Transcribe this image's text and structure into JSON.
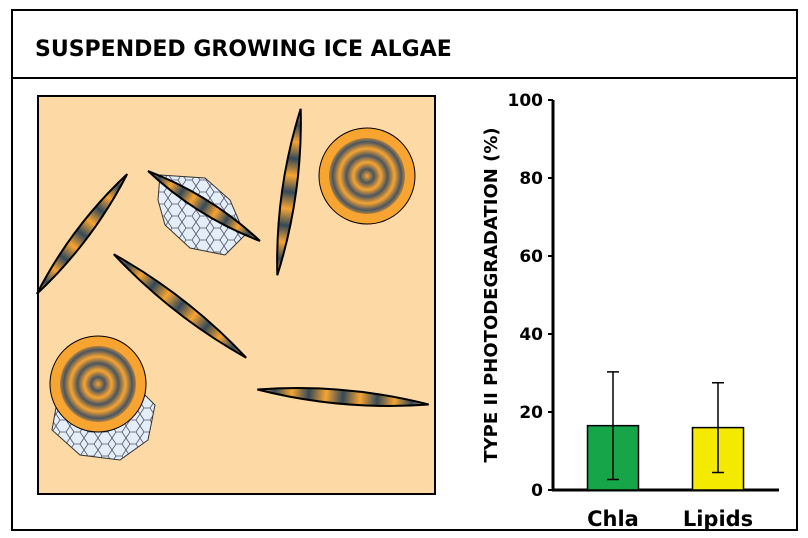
{
  "title": "SUSPENDED GROWING ICE ALGAE",
  "chart_data": {
    "type": "bar",
    "y_label": "TYPE II PHOTODEGRADATION (%)",
    "categories": [
      "Chla",
      "Lipids"
    ],
    "series": [
      {
        "name": null,
        "values": [
          16.5,
          16
        ],
        "errors": [
          13.8,
          11.5
        ],
        "colors": [
          "#16a548",
          "#f4ea00"
        ]
      }
    ],
    "ylim": [
      0,
      100
    ],
    "yticks": [
      0,
      20,
      40,
      60,
      80,
      100
    ],
    "grid": false
  }
}
